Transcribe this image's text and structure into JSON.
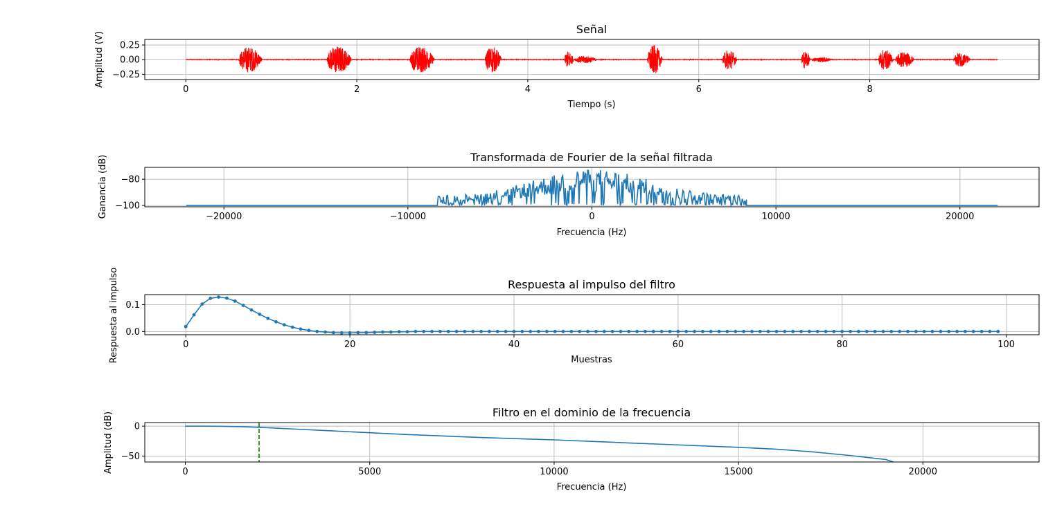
{
  "chart_data": [
    {
      "type": "line",
      "title": "Señal",
      "xlabel": "Tiempo (s)",
      "ylabel": "Amplitud (V)",
      "xlim": [
        -0.48,
        9.98
      ],
      "ylim": [
        -0.34,
        0.345
      ],
      "xticks": [
        0,
        2,
        4,
        6,
        8
      ],
      "xtick_labels": [
        "0",
        "2",
        "4",
        "6",
        "8"
      ],
      "yticks": [
        0.25,
        0.0,
        -0.25
      ],
      "ytick_labels": [
        "0.25",
        "0.00",
        "−0.25"
      ],
      "grid": true,
      "color": "#ff0000",
      "x_range": [
        0,
        9.5
      ],
      "bursts": [
        {
          "start": 0.62,
          "end": 0.93,
          "amp": 0.27
        },
        {
          "start": 1.65,
          "end": 1.98,
          "amp": 0.29
        },
        {
          "start": 2.62,
          "end": 2.95,
          "amp": 0.28
        },
        {
          "start": 3.5,
          "end": 3.72,
          "amp": 0.28
        },
        {
          "start": 4.43,
          "end": 4.55,
          "amp": 0.18
        },
        {
          "start": 4.55,
          "end": 4.85,
          "amp": 0.08
        },
        {
          "start": 5.4,
          "end": 5.6,
          "amp": 0.3
        },
        {
          "start": 6.28,
          "end": 6.47,
          "amp": 0.22
        },
        {
          "start": 7.2,
          "end": 7.32,
          "amp": 0.19
        },
        {
          "start": 7.32,
          "end": 7.6,
          "amp": 0.05
        },
        {
          "start": 8.1,
          "end": 8.3,
          "amp": 0.22
        },
        {
          "start": 8.3,
          "end": 8.55,
          "amp": 0.17
        },
        {
          "start": 8.98,
          "end": 9.2,
          "amp": 0.15
        }
      ]
    },
    {
      "type": "line",
      "title": "Transformada de Fourier de la señal filtrada",
      "xlabel": "Frecuencia (Hz)",
      "ylabel": "Ganancia (dB)",
      "xlim": [
        -24300,
        24300
      ],
      "ylim": [
        -101,
        -71
      ],
      "xticks": [
        -20000,
        -10000,
        0,
        10000,
        20000
      ],
      "xtick_labels": [
        "−20000",
        "−10000",
        "0",
        "10000",
        "20000"
      ],
      "yticks": [
        -80,
        -100
      ],
      "ytick_labels": [
        "−80",
        "−100"
      ],
      "grid": true,
      "color": "#1f77b4",
      "x_range": [
        -22050,
        22050
      ],
      "floor_db": -100,
      "active_band": [
        -8400,
        8400
      ],
      "peak_db": -72
    },
    {
      "type": "line",
      "title": "Respuesta al impulso del filtro",
      "xlabel": "Muestras",
      "ylabel": "Respuesta al impulso",
      "xlim": [
        -5,
        104
      ],
      "ylim": [
        -0.012,
        0.137
      ],
      "xticks": [
        0,
        20,
        40,
        60,
        80,
        100
      ],
      "xtick_labels": [
        "0",
        "20",
        "40",
        "60",
        "80",
        "100"
      ],
      "yticks": [
        0.1,
        0.0
      ],
      "ytick_labels": [
        "0.1",
        "0.0"
      ],
      "grid": true,
      "color": "#1f77b4",
      "markers": true,
      "x": [
        0,
        1,
        2,
        3,
        4,
        5,
        6,
        7,
        8,
        9,
        10,
        11,
        12,
        13,
        14,
        15,
        16,
        17,
        18,
        19,
        20,
        21,
        22,
        23,
        24,
        25,
        26,
        27,
        28,
        29,
        30,
        31,
        32,
        33,
        34,
        35,
        36,
        37,
        38,
        39,
        40,
        41,
        42,
        43,
        44,
        45,
        46,
        47,
        48,
        49,
        50,
        51,
        52,
        53,
        54,
        55,
        56,
        57,
        58,
        59,
        60,
        61,
        62,
        63,
        64,
        65,
        66,
        67,
        68,
        69,
        70,
        71,
        72,
        73,
        74,
        75,
        76,
        77,
        78,
        79,
        80,
        81,
        82,
        83,
        84,
        85,
        86,
        87,
        88,
        89,
        90,
        91,
        92,
        93,
        94,
        95,
        96,
        97,
        98,
        99
      ],
      "values": [
        0.018,
        0.062,
        0.102,
        0.123,
        0.128,
        0.124,
        0.113,
        0.097,
        0.08,
        0.064,
        0.049,
        0.036,
        0.025,
        0.016,
        0.009,
        0.004,
        0.0,
        -0.002,
        -0.004,
        -0.005,
        -0.005,
        -0.004,
        -0.004,
        -0.003,
        -0.002,
        -0.002,
        -0.001,
        -0.001,
        0.0,
        0.0,
        0.0,
        0.0,
        0.0,
        0.0,
        0.0,
        0.0,
        0.0,
        0.0,
        0.0,
        0.0,
        0.0,
        0.0,
        0.0,
        0.0,
        0.0,
        0.0,
        0.0,
        0.0,
        0.0,
        0.0,
        0.0,
        0.0,
        0.0,
        0.0,
        0.0,
        0.0,
        0.0,
        0.0,
        0.0,
        0.0,
        0.0,
        0.0,
        0.0,
        0.0,
        0.0,
        0.0,
        0.0,
        0.0,
        0.0,
        0.0,
        0.0,
        0.0,
        0.0,
        0.0,
        0.0,
        0.0,
        0.0,
        0.0,
        0.0,
        0.0,
        0.0,
        0.0,
        0.0,
        0.0,
        0.0,
        0.0,
        0.0,
        0.0,
        0.0,
        0.0,
        0.0,
        0.0,
        0.0,
        0.0,
        0.0,
        0.0,
        0.0,
        0.0,
        0.0,
        0.0
      ]
    },
    {
      "type": "line",
      "title": "Filtro en el dominio de la frecuencia",
      "xlabel": "Frecuencia (Hz)",
      "ylabel": "Amplitud (dB)",
      "xlim": [
        -1100,
        23150
      ],
      "ylim": [
        -60,
        6
      ],
      "xticks": [
        0,
        5000,
        10000,
        15000,
        20000
      ],
      "xtick_labels": [
        "0",
        "5000",
        "10000",
        "15000",
        "20000"
      ],
      "yticks": [
        0,
        -50
      ],
      "ytick_labels": [
        "0",
        "−50"
      ],
      "grid": true,
      "color": "#1f77b4",
      "x": [
        0,
        500,
        1000,
        1500,
        2000,
        2500,
        3000,
        4000,
        5000,
        6000,
        7000,
        8000,
        9000,
        10000,
        11000,
        12000,
        13000,
        14000,
        15000,
        16000,
        17000,
        18000,
        19000,
        19200
      ],
      "values": [
        0,
        0,
        -0.2,
        -0.8,
        -2.0,
        -3.5,
        -5.0,
        -8.0,
        -11.0,
        -14.0,
        -16.5,
        -19.0,
        -21.0,
        -23.0,
        -25.5,
        -28.0,
        -30.5,
        -33.0,
        -35.5,
        -38.5,
        -43.0,
        -49.0,
        -56.0,
        -60.0
      ],
      "cutoff": {
        "x": 2000,
        "color": "#008000",
        "style": "dashed"
      }
    }
  ]
}
